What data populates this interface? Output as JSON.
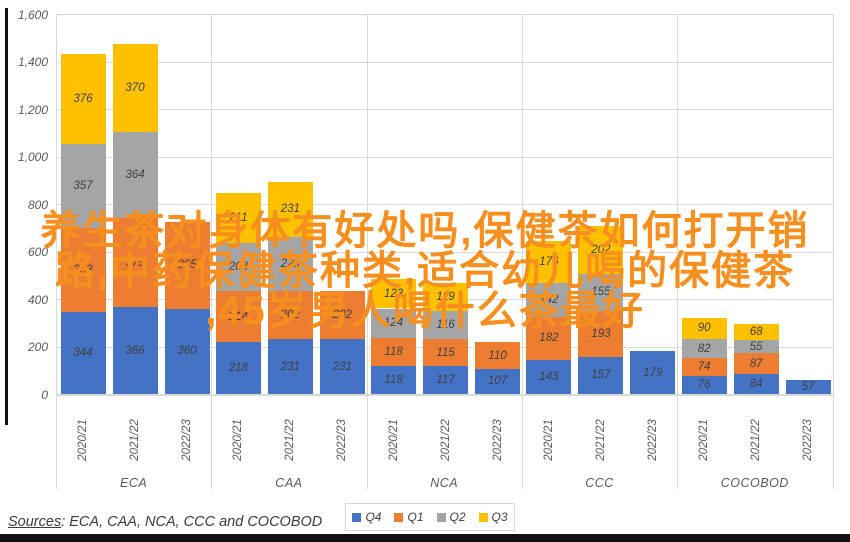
{
  "overlay_title": {
    "color": "#F78F1E",
    "lines": [
      "养生茶对身体有好处吗,保健茶如何打开销",
      "路,中药保健茶种类,适合幼儿喝的保健茶",
      ",45岁男人喝什么茶最好"
    ]
  },
  "sources": {
    "label": "Sources",
    "rest": ": ECA, CAA, NCA, CCC and COCOBOD"
  },
  "chart_data": {
    "type": "bar",
    "subtype": "stacked-column",
    "title": "",
    "xlabel": "",
    "ylabel": "",
    "grid": true,
    "legend_position": "bottom-right",
    "series_order": [
      "Q4",
      "Q1",
      "Q2",
      "Q3"
    ],
    "series_colors": {
      "Q4": "#4472C4",
      "Q1": "#ED7D31",
      "Q2": "#A5A5A5",
      "Q3": "#FFC000"
    },
    "legend": [
      {
        "label": "Q4",
        "color": "#4472C4"
      },
      {
        "label": "Q1",
        "color": "#ED7D31"
      },
      {
        "label": "Q2",
        "color": "#A5A5A5"
      },
      {
        "label": "Q3",
        "color": "#FFC000"
      }
    ],
    "y_axis": {
      "min": 0,
      "max": 1600,
      "step": 200,
      "tick_labels": [
        "0",
        "200",
        "400",
        "600",
        "800",
        "1,000",
        "1,200",
        "1,400",
        "1,600"
      ]
    },
    "groups": [
      {
        "label": "ECA",
        "bars": [
          {
            "year": "2020/21",
            "values": [
              344,
              353,
              357,
              376
            ]
          },
          {
            "year": "2021/22",
            "values": [
              366,
              375,
              364,
              370
            ]
          },
          {
            "year": "2022/23",
            "values": [
              360,
              365
            ]
          }
        ]
      },
      {
        "label": "CAA",
        "bars": [
          {
            "year": "2020/21",
            "values": [
              218,
              214,
              203,
              211
            ]
          },
          {
            "year": "2021/22",
            "values": [
              231,
              202,
              229,
              231
            ]
          },
          {
            "year": "2022/23",
            "values": [
              231,
              202
            ]
          }
        ]
      },
      {
        "label": "NCA",
        "bars": [
          {
            "year": "2020/21",
            "values": [
              118,
              118,
              124,
              123
            ]
          },
          {
            "year": "2021/22",
            "values": [
              117,
              115,
              116,
              119
            ]
          },
          {
            "year": "2022/23",
            "values": [
              107,
              110
            ]
          }
        ]
      },
      {
        "label": "CCC",
        "bars": [
          {
            "year": "2020/21",
            "values": [
              143,
              182,
              142,
              176
            ]
          },
          {
            "year": "2021/22",
            "values": [
              157,
              193,
              155,
              202
            ]
          },
          {
            "year": "2022/23",
            "values": [
              179
            ]
          }
        ]
      },
      {
        "label": "COCOBOD",
        "bars": [
          {
            "year": "2020/21",
            "values": [
              76,
              74,
              82,
              90
            ]
          },
          {
            "year": "2021/22",
            "values": [
              84,
              87,
              55,
              68
            ]
          },
          {
            "year": "2022/23",
            "values": [
              57
            ]
          }
        ]
      }
    ]
  }
}
